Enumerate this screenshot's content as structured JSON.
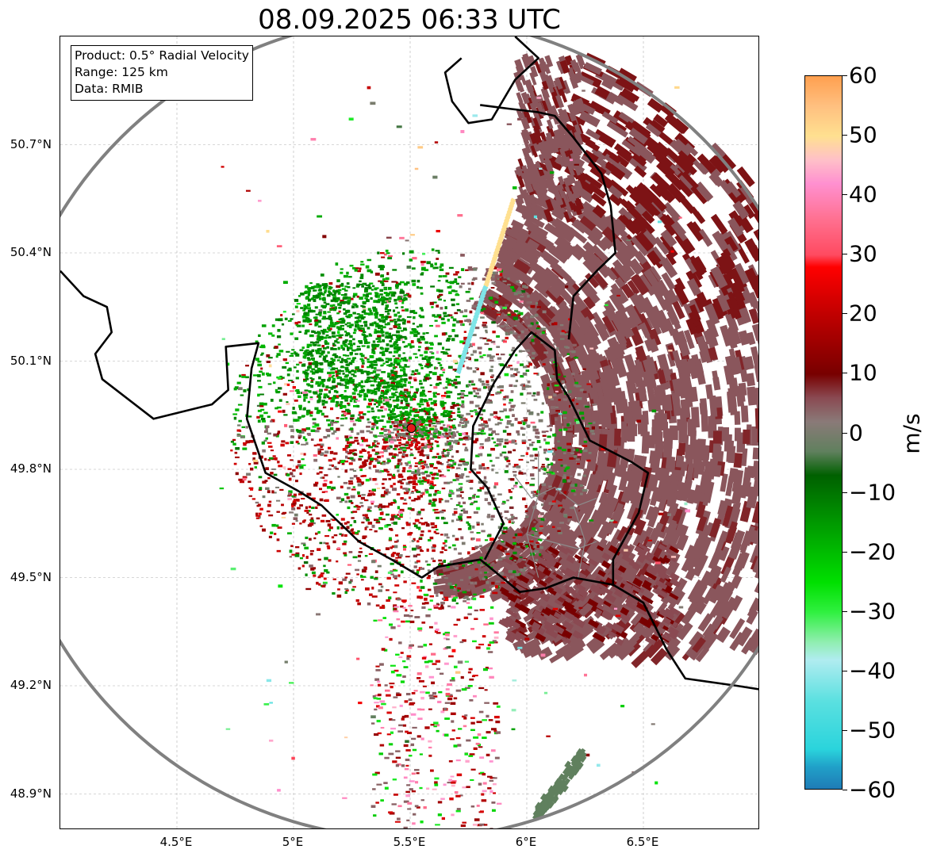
{
  "title": "08.09.2025 06:33 UTC",
  "info_box": {
    "product": "Product: 0.5° Radial Velocity",
    "range": "Range: 125 km",
    "data": "Data: RMIB"
  },
  "map": {
    "lon_range": [
      4.0,
      7.0
    ],
    "lat_range": [
      48.8,
      51.0
    ],
    "lon_ticks": [
      {
        "value": 4.5,
        "label": "4.5°E"
      },
      {
        "value": 5.0,
        "label": "5°E"
      },
      {
        "value": 5.5,
        "label": "5.5°E"
      },
      {
        "value": 6.0,
        "label": "6°E"
      },
      {
        "value": 6.5,
        "label": "6.5°E"
      }
    ],
    "lat_ticks": [
      {
        "value": 48.9,
        "label": "48.9°N"
      },
      {
        "value": 49.2,
        "label": "49.2°N"
      },
      {
        "value": 49.5,
        "label": "49.5°N"
      },
      {
        "value": 49.8,
        "label": "49.8°N"
      },
      {
        "value": 50.1,
        "label": "50.1°N"
      },
      {
        "value": 50.4,
        "label": "50.4°N"
      },
      {
        "value": 50.7,
        "label": "50.7°N"
      }
    ],
    "radar_site": {
      "lon": 5.505,
      "lat": 49.914,
      "color": "#e41a1c"
    },
    "range_km": 125,
    "range_ring_color": "#808080",
    "borders": {
      "west_belgium_france": [
        [
          4.0,
          50.35
        ],
        [
          4.1,
          50.28
        ],
        [
          4.2,
          50.25
        ],
        [
          4.22,
          50.18
        ],
        [
          4.15,
          50.12
        ],
        [
          4.18,
          50.05
        ],
        [
          4.4,
          49.94
        ],
        [
          4.65,
          49.98
        ],
        [
          4.72,
          50.02
        ],
        [
          4.71,
          50.14
        ],
        [
          4.85,
          50.15
        ],
        [
          4.82,
          50.08
        ],
        [
          4.8,
          49.94
        ],
        [
          4.88,
          49.79
        ],
        [
          5.02,
          49.74
        ],
        [
          5.12,
          49.7
        ],
        [
          5.28,
          49.6
        ],
        [
          5.42,
          49.55
        ],
        [
          5.55,
          49.5
        ],
        [
          5.62,
          49.53
        ],
        [
          5.8,
          49.55
        ],
        [
          5.97,
          49.46
        ],
        [
          6.08,
          49.47
        ],
        [
          6.2,
          49.5
        ],
        [
          6.37,
          49.48
        ],
        [
          6.5,
          49.43
        ],
        [
          6.6,
          49.3
        ],
        [
          6.68,
          49.22
        ],
        [
          6.9,
          49.2
        ],
        [
          7.0,
          49.19
        ]
      ],
      "belgium_luxembourg": [
        [
          5.82,
          49.55
        ],
        [
          5.9,
          49.65
        ],
        [
          5.83,
          49.75
        ],
        [
          5.76,
          49.8
        ],
        [
          5.77,
          49.92
        ],
        [
          5.86,
          50.04
        ],
        [
          5.95,
          50.13
        ],
        [
          6.02,
          50.18
        ],
        [
          6.12,
          50.13
        ],
        [
          6.13,
          50.05
        ],
        [
          6.18,
          50.0
        ],
        [
          6.27,
          49.88
        ],
        [
          6.45,
          49.82
        ],
        [
          6.52,
          49.79
        ],
        [
          6.48,
          49.68
        ],
        [
          6.37,
          49.55
        ],
        [
          6.37,
          49.48
        ]
      ],
      "belgium_germany": [
        [
          6.18,
          50.16
        ],
        [
          6.2,
          50.28
        ],
        [
          6.3,
          50.35
        ],
        [
          6.38,
          50.4
        ],
        [
          6.36,
          50.53
        ],
        [
          6.32,
          50.62
        ],
        [
          6.2,
          50.72
        ],
        [
          6.12,
          50.78
        ],
        [
          6.05,
          50.79
        ],
        [
          5.92,
          50.8
        ],
        [
          5.8,
          50.81
        ]
      ],
      "netherlands": [
        [
          5.95,
          51.0
        ],
        [
          6.05,
          50.94
        ],
        [
          5.95,
          50.88
        ],
        [
          5.85,
          50.77
        ],
        [
          5.75,
          50.76
        ],
        [
          5.68,
          50.82
        ],
        [
          5.65,
          50.9
        ],
        [
          5.72,
          50.94
        ]
      ]
    },
    "lux_districts": [
      [
        [
          5.95,
          49.78
        ],
        [
          6.02,
          49.72
        ],
        [
          6.12,
          49.75
        ],
        [
          6.22,
          49.7
        ],
        [
          6.3,
          49.72
        ]
      ],
      [
        [
          6.0,
          49.62
        ],
        [
          6.1,
          49.6
        ],
        [
          6.22,
          49.58
        ],
        [
          6.3,
          49.6
        ]
      ],
      [
        [
          6.05,
          49.85
        ],
        [
          6.05,
          49.73
        ],
        [
          6.0,
          49.62
        ],
        [
          6.05,
          49.5
        ]
      ],
      [
        [
          6.2,
          49.7
        ],
        [
          6.25,
          49.6
        ],
        [
          6.22,
          49.5
        ]
      ]
    ]
  },
  "colorbar": {
    "label": "m/s",
    "range": [
      -60,
      60
    ],
    "ticks": [
      "60",
      "50",
      "40",
      "30",
      "20",
      "10",
      "0",
      "−10",
      "−20",
      "−30",
      "−40",
      "−50",
      "−60"
    ],
    "tick_values": [
      60,
      50,
      40,
      30,
      20,
      10,
      0,
      -10,
      -20,
      -30,
      -40,
      -50,
      -60
    ],
    "color_stops": [
      {
        "v": -60,
        "c": "#1f78b4"
      },
      {
        "v": -56,
        "c": "#20a0c8"
      },
      {
        "v": -53,
        "c": "#2ad4dc"
      },
      {
        "v": -45,
        "c": "#5ae0e0"
      },
      {
        "v": -38,
        "c": "#b0ecf0"
      },
      {
        "v": -35,
        "c": "#90eeb0"
      },
      {
        "v": -30,
        "c": "#30f040"
      },
      {
        "v": -25,
        "c": "#00e000"
      },
      {
        "v": -16,
        "c": "#00a000"
      },
      {
        "v": -7,
        "c": "#006000"
      },
      {
        "v": -3,
        "c": "#60805e"
      },
      {
        "v": 2,
        "c": "#8a7a78"
      },
      {
        "v": 6,
        "c": "#8a4a52"
      },
      {
        "v": 10,
        "c": "#780000"
      },
      {
        "v": 20,
        "c": "#c00000"
      },
      {
        "v": 28,
        "c": "#ff0000"
      },
      {
        "v": 30,
        "c": "#ff4a60"
      },
      {
        "v": 36,
        "c": "#ff7090"
      },
      {
        "v": 42,
        "c": "#ff90d0"
      },
      {
        "v": 46,
        "c": "#ffc0c8"
      },
      {
        "v": 50,
        "c": "#ffe090"
      },
      {
        "v": 55,
        "c": "#ffc080"
      },
      {
        "v": 60,
        "c": "#ffa050"
      }
    ]
  }
}
